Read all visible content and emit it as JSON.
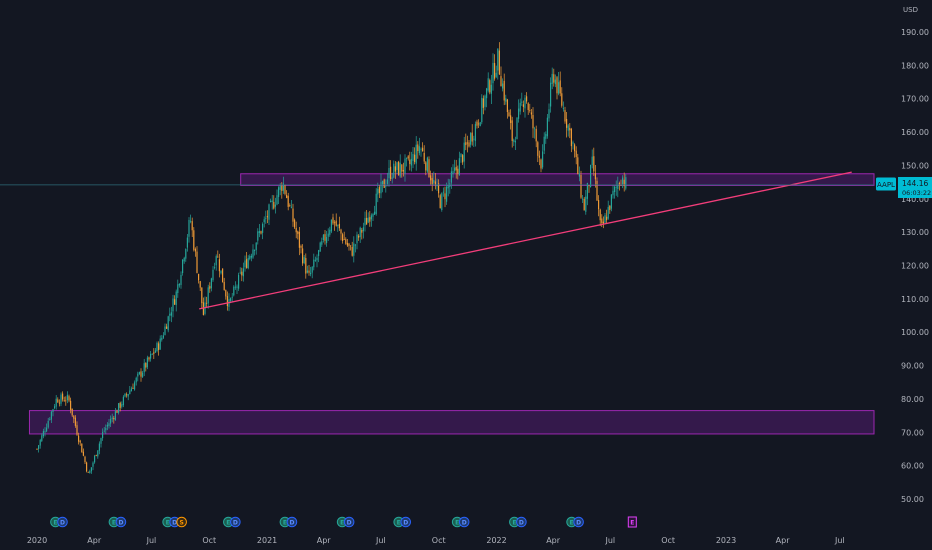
{
  "colors": {
    "background": "#131722",
    "axis_text": "#b2b5be",
    "up_candle": "#26a69a",
    "down_candle": "#ef9b37",
    "zone_fill": "#7b1fa2",
    "zone_border": "#9c27b0",
    "trendline": "#f23d7a",
    "price_badge": "#00bcd4",
    "price_line": "#2d6b78"
  },
  "chart_data": {
    "type": "candlestick",
    "symbol": "AAPL",
    "currency_label": "USD",
    "last_price": "144.16",
    "countdown": "06:03:22",
    "y_axis": {
      "ylim": [
        44,
        198
      ],
      "ticks": [
        "50.00",
        "60.00",
        "70.00",
        "80.00",
        "90.00",
        "100.00",
        "110.00",
        "120.00",
        "130.00",
        "140.00",
        "150.00",
        "160.00",
        "170.00",
        "180.00",
        "190.00"
      ]
    },
    "x_axis": {
      "ticks": [
        "2020",
        "Apr",
        "Jul",
        "Oct",
        "2021",
        "Apr",
        "Jul",
        "Oct",
        "2022",
        "Apr",
        "Jul",
        "Oct",
        "2023",
        "Apr",
        "Jul"
      ]
    },
    "price_path": [
      [
        "2020-01-01",
        65
      ],
      [
        "2020-02-01",
        80
      ],
      [
        "2020-02-20",
        80
      ],
      [
        "2020-03-23",
        57
      ],
      [
        "2020-04-15",
        70
      ],
      [
        "2020-05-15",
        79
      ],
      [
        "2020-06-15",
        88
      ],
      [
        "2020-07-15",
        97
      ],
      [
        "2020-08-10",
        112
      ],
      [
        "2020-09-01",
        134
      ],
      [
        "2020-09-22",
        105
      ],
      [
        "2020-10-12",
        124
      ],
      [
        "2020-11-01",
        108
      ],
      [
        "2020-12-01",
        122
      ],
      [
        "2021-01-26",
        145
      ],
      [
        "2021-03-08",
        116
      ],
      [
        "2021-04-15",
        134
      ],
      [
        "2021-05-15",
        124
      ],
      [
        "2021-07-15",
        148
      ],
      [
        "2021-08-15",
        150
      ],
      [
        "2021-09-01",
        156
      ],
      [
        "2021-10-04",
        139
      ],
      [
        "2021-11-01",
        150
      ],
      [
        "2021-12-01",
        163
      ],
      [
        "2022-01-03",
        182
      ],
      [
        "2022-01-27",
        157
      ],
      [
        "2022-02-15",
        172
      ],
      [
        "2022-03-14",
        150
      ],
      [
        "2022-04-01",
        178
      ],
      [
        "2022-05-02",
        157
      ],
      [
        "2022-05-20",
        137
      ],
      [
        "2022-06-03",
        151
      ],
      [
        "2022-06-16",
        130
      ],
      [
        "2022-07-05",
        141
      ],
      [
        "2022-07-19",
        147
      ],
      [
        "2022-07-26",
        144.16
      ]
    ],
    "zones": [
      {
        "name": "resistance-zone",
        "x_start": "2020-11-20",
        "x_end": "2023-09-30",
        "y_low": 144,
        "y_high": 147.5
      },
      {
        "name": "support-zone",
        "x_start": "2019-12-20",
        "x_end": "2023-09-30",
        "y_low": 69.5,
        "y_high": 76.5
      }
    ],
    "trendline": {
      "x1": "2020-09-15",
      "y1": 107,
      "x2": "2023-07-20",
      "y2": 148
    },
    "events": [
      {
        "date": "2020-01-28",
        "icons": [
          "earnings",
          "dividend"
        ]
      },
      {
        "date": "2020-04-30",
        "icons": [
          "earnings",
          "dividend"
        ]
      },
      {
        "date": "2020-07-30",
        "icons": [
          "earnings",
          "dividend",
          "split"
        ]
      },
      {
        "date": "2020-10-29",
        "icons": [
          "earnings",
          "dividend"
        ]
      },
      {
        "date": "2021-01-27",
        "icons": [
          "earnings",
          "dividend"
        ]
      },
      {
        "date": "2021-04-28",
        "icons": [
          "earnings",
          "dividend"
        ]
      },
      {
        "date": "2021-07-27",
        "icons": [
          "earnings",
          "dividend"
        ]
      },
      {
        "date": "2021-10-28",
        "icons": [
          "earnings",
          "dividend"
        ]
      },
      {
        "date": "2022-01-27",
        "icons": [
          "earnings",
          "dividend"
        ]
      },
      {
        "date": "2022-04-28",
        "icons": [
          "earnings",
          "dividend"
        ]
      },
      {
        "date": "2022-07-28",
        "icons": [
          "earnings-upcoming"
        ]
      }
    ]
  }
}
